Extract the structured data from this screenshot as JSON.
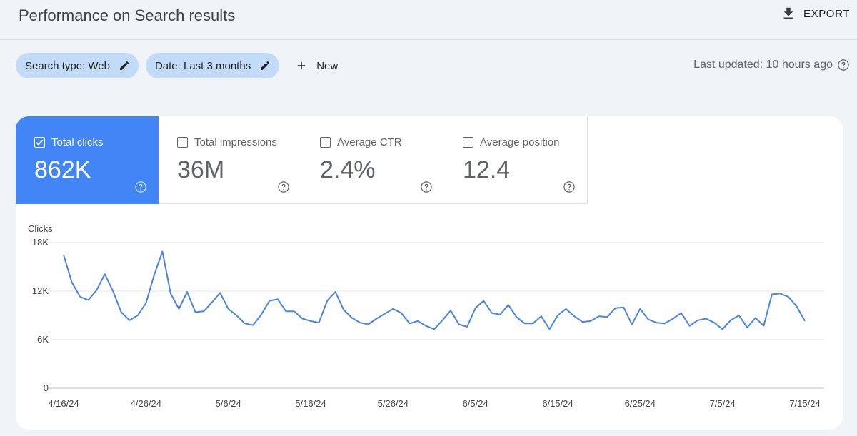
{
  "header": {
    "title": "Performance on Search results",
    "export_label": "EXPORT"
  },
  "filters": {
    "search_type": "Search type: Web",
    "date": "Date: Last 3 months",
    "new_label": "New",
    "last_updated": "Last updated: 10 hours ago"
  },
  "metrics": [
    {
      "label": "Total clicks",
      "value": "862K",
      "checked": true
    },
    {
      "label": "Total impressions",
      "value": "36M",
      "checked": false
    },
    {
      "label": "Average CTR",
      "value": "2.4%",
      "checked": false
    },
    {
      "label": "Average position",
      "value": "12.4",
      "checked": false
    }
  ],
  "colors": {
    "accent": "#4285f4",
    "chip": "#c2dbf8",
    "line": "#4a84de"
  },
  "icons": [
    "download-icon",
    "pencil-icon",
    "plus-icon",
    "help-circle-icon",
    "checkbox-icon"
  ],
  "chart_data": {
    "type": "line",
    "title": "",
    "ylabel": "Clicks",
    "xlabel": "",
    "ylim": [
      0,
      18000
    ],
    "y_ticks": [
      0,
      6000,
      12000,
      18000
    ],
    "y_tick_labels": [
      "0",
      "6K",
      "12K",
      "18K"
    ],
    "x_tick_labels": [
      "4/16/24",
      "4/26/24",
      "5/6/24",
      "5/16/24",
      "5/26/24",
      "6/5/24",
      "6/15/24",
      "6/25/24",
      "7/5/24",
      "7/15/24"
    ],
    "x_start": "4/16/24",
    "x_end": "7/15/24",
    "grid": true,
    "series": [
      {
        "values": [
          16500,
          13100,
          11300,
          10900,
          12100,
          14100,
          12000,
          9400,
          8400,
          9000,
          10500,
          14000,
          16900,
          11700,
          9800,
          11900,
          9400,
          9500,
          10600,
          11800,
          9800,
          9000,
          8000,
          7800,
          9100,
          10800,
          11000,
          9500,
          9500,
          8600,
          8300,
          8100,
          10800,
          11900,
          9700,
          8700,
          8100,
          7900,
          8600,
          9200,
          9800,
          9300,
          8000,
          8300,
          7700,
          7300,
          8400,
          9600,
          7900,
          7600,
          9900,
          10800,
          9300,
          9100,
          10300,
          8800,
          8000,
          8000,
          8900,
          7300,
          9000,
          9800,
          8900,
          8200,
          8300,
          8900,
          8800,
          9900,
          10000,
          7900,
          9800,
          8500,
          8100,
          8000,
          8600,
          9300,
          7700,
          8400,
          8600,
          8100,
          7300,
          8400,
          9000,
          7500,
          8700,
          7700,
          11600,
          11700,
          11300,
          10100,
          8300
        ]
      }
    ]
  }
}
